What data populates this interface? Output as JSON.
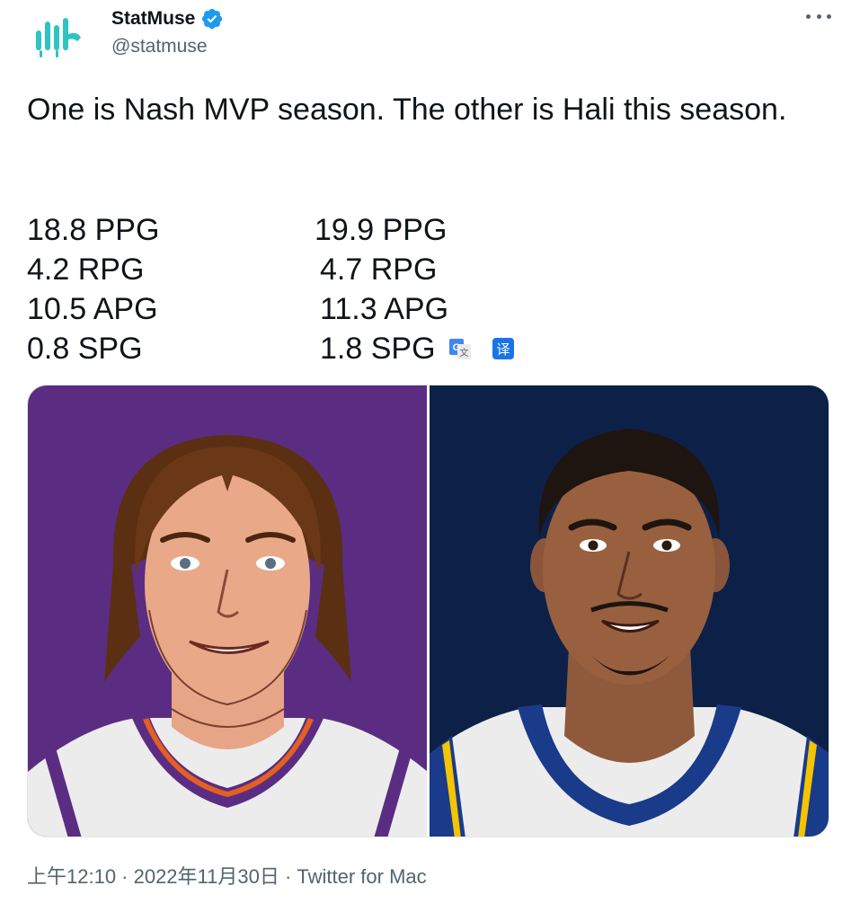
{
  "author": {
    "name": "StatMuse",
    "handle": "@statmuse",
    "verified": true,
    "avatar_icon": "statmuse-logo-icon",
    "brand_color": "#2ec4c0"
  },
  "tweet": {
    "text": "One is Nash MVP season. The other is Hali this season.",
    "stats_left": [
      "18.8 PPG",
      "4.2 RPG",
      "10.5 APG",
      "0.8 SPG"
    ],
    "stats_right": [
      "19.9 PPG",
      "4.7 RPG",
      "11.3 APG",
      "1.8 SPG"
    ],
    "translate_icons": [
      "google-translate-icon",
      "translate-icon"
    ]
  },
  "media": {
    "left": {
      "player": "Steve Nash",
      "bg_color": "#5a2d82"
    },
    "right": {
      "player": "Tyrese Haliburton",
      "bg_color": "#0d2048"
    }
  },
  "meta": {
    "timestamp": "上午12:10 · 2022年11月30日 · Twitter for Mac"
  },
  "colors": {
    "text_primary": "#0f1419",
    "text_secondary": "#536471",
    "verified_blue": "#1d9bf0"
  }
}
